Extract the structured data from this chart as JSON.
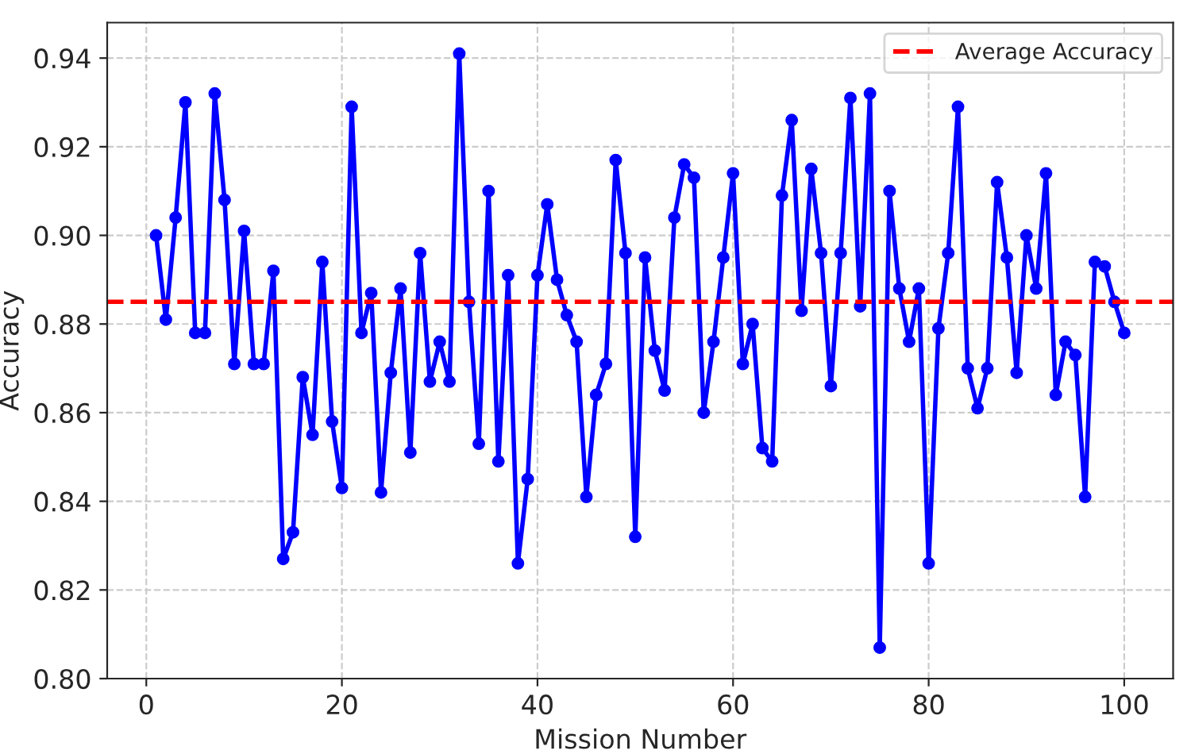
{
  "chart_data": {
    "type": "line",
    "xlabel": "Mission Number",
    "ylabel": "Accuracy",
    "x": [
      1,
      2,
      3,
      4,
      5,
      6,
      7,
      8,
      9,
      10,
      11,
      12,
      13,
      14,
      15,
      16,
      17,
      18,
      19,
      20,
      21,
      22,
      23,
      24,
      25,
      26,
      27,
      28,
      29,
      30,
      31,
      32,
      33,
      34,
      35,
      36,
      37,
      38,
      39,
      40,
      41,
      42,
      43,
      44,
      45,
      46,
      47,
      48,
      49,
      50,
      51,
      52,
      53,
      54,
      55,
      56,
      57,
      58,
      59,
      60,
      61,
      62,
      63,
      64,
      65,
      66,
      67,
      68,
      69,
      70,
      71,
      72,
      73,
      74,
      75,
      76,
      77,
      78,
      79,
      80,
      81,
      82,
      83,
      84,
      85,
      86,
      87,
      88,
      89,
      90,
      91,
      92,
      93,
      94,
      95,
      96,
      97,
      98,
      99,
      100
    ],
    "series": [
      {
        "color": "#0000ff",
        "values": [
          0.9,
          0.881,
          0.904,
          0.93,
          0.878,
          0.878,
          0.932,
          0.908,
          0.871,
          0.901,
          0.871,
          0.871,
          0.892,
          0.827,
          0.833,
          0.868,
          0.855,
          0.894,
          0.858,
          0.843,
          0.929,
          0.878,
          0.887,
          0.842,
          0.869,
          0.888,
          0.851,
          0.896,
          0.867,
          0.876,
          0.867,
          0.941,
          0.885,
          0.853,
          0.91,
          0.849,
          0.891,
          0.826,
          0.845,
          0.891,
          0.907,
          0.89,
          0.882,
          0.876,
          0.841,
          0.864,
          0.871,
          0.917,
          0.896,
          0.832,
          0.895,
          0.874,
          0.865,
          0.904,
          0.916,
          0.913,
          0.86,
          0.876,
          0.895,
          0.914,
          0.871,
          0.88,
          0.852,
          0.849,
          0.909,
          0.926,
          0.883,
          0.915,
          0.896,
          0.866,
          0.896,
          0.931,
          0.884,
          0.932,
          0.807,
          0.91,
          0.888,
          0.876,
          0.888,
          0.826,
          0.879,
          0.896,
          0.929,
          0.87,
          0.861,
          0.87,
          0.912,
          0.895,
          0.869,
          0.9,
          0.888,
          0.914,
          0.864,
          0.876,
          0.873,
          0.841,
          0.894,
          0.893,
          0.885,
          0.878
        ]
      }
    ],
    "ref_lines": [
      {
        "axis": "y",
        "value": 0.885,
        "label": "Average Accuracy",
        "color": "#ff0000",
        "line_style": "dashed"
      }
    ],
    "xlim": [
      -4,
      105
    ],
    "xticks": [
      0,
      20,
      40,
      60,
      80,
      100
    ],
    "ylim": [
      0.8,
      0.948
    ],
    "yticks": [
      {
        "value": 0.8,
        "label": "0.80"
      },
      {
        "value": 0.82,
        "label": "0.82"
      },
      {
        "value": 0.84,
        "label": "0.84"
      },
      {
        "value": 0.86,
        "label": "0.86"
      },
      {
        "value": 0.88,
        "label": "0.88"
      },
      {
        "value": 0.9,
        "label": "0.90"
      },
      {
        "value": 0.92,
        "label": "0.92"
      },
      {
        "value": 0.94,
        "label": "0.94"
      }
    ],
    "grid": true,
    "legend": "top right",
    "marker": "circle",
    "line_style": "solid"
  }
}
